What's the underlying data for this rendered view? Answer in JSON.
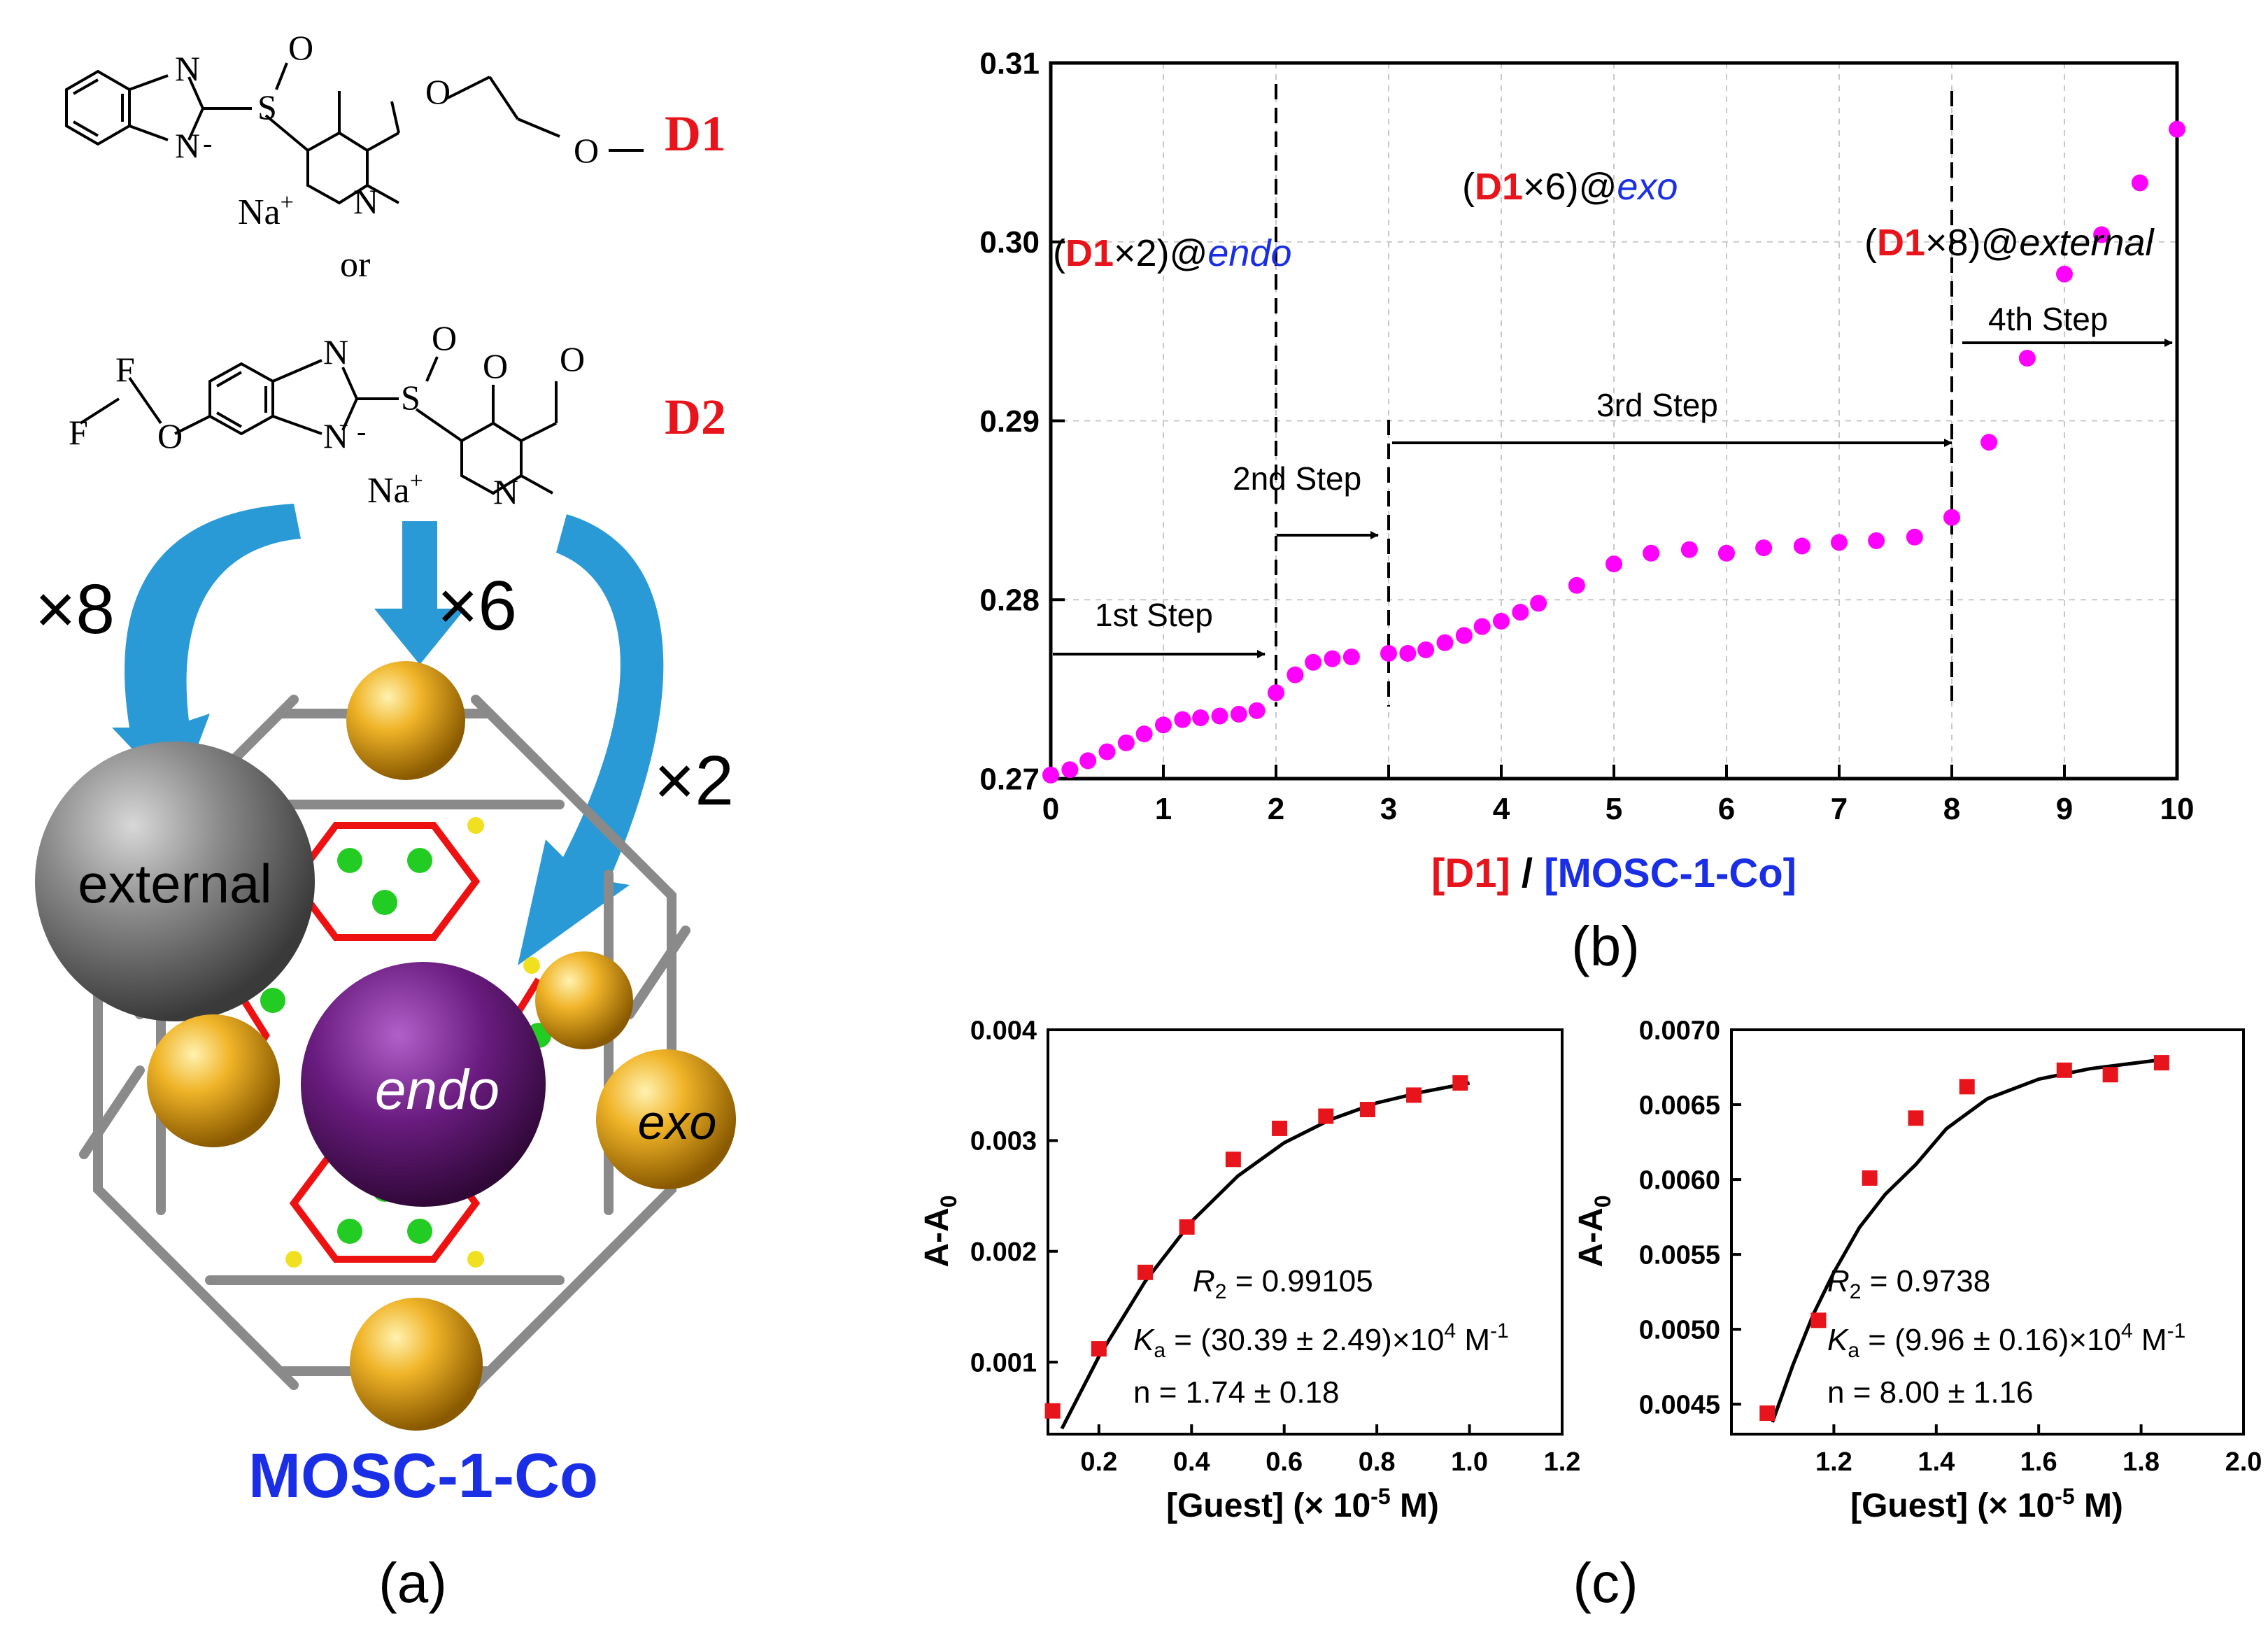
{
  "panel_a": {
    "drug1_label": "D1",
    "drug2_label": "D2",
    "or_text": "or",
    "counter_ion": "Na",
    "counter_ion_sup": "+",
    "count_external": "×8",
    "count_exo": "×6",
    "count_endo": "×2",
    "site_external": "external",
    "site_endo": "endo",
    "site_exo": "exo",
    "cage_name": "MOSC-1-Co",
    "panel_label": "(a)",
    "atoms_D1": [
      "N",
      "N",
      "S",
      "O",
      "O",
      "O",
      "N"
    ],
    "atoms_D2": [
      "F",
      "F",
      "O",
      "N",
      "N",
      "S",
      "O",
      "O",
      "O",
      "N"
    ],
    "minus": "-",
    "colors": {
      "drug_label": "#e8141c",
      "cage_name": "#1a2ee6",
      "arrow": "#2a9ad6",
      "external": "#7f7f7f",
      "endo": "#5b1670",
      "exo": "#e0a41a"
    }
  },
  "panel_b": {
    "panel_label": "(b)",
    "xlabel_parts": [
      "[",
      "D1",
      "] / [",
      "MOSC-1-Co",
      "]"
    ],
    "annotations": {
      "endo": [
        "(",
        "D1",
        "×2)@",
        "endo"
      ],
      "exo": [
        "(",
        "D1",
        "×6)@",
        "exo"
      ],
      "external": [
        "(",
        "D1",
        "×8)@",
        "external"
      ]
    },
    "steps": [
      "1st Step",
      "2nd Step",
      "3rd Step",
      "4th Step"
    ]
  },
  "panel_c": {
    "panel_label": "(c)"
  },
  "chart_data": [
    {
      "type": "scatter",
      "xlim": [
        0,
        10
      ],
      "ylim": [
        0.27,
        0.31
      ],
      "x_ticks": [
        0,
        1,
        2,
        3,
        4,
        5,
        6,
        7,
        8,
        9,
        10
      ],
      "x_tick_labels": [
        "0",
        "1",
        "2",
        "3",
        "4",
        "5",
        "6",
        "7",
        "8",
        "9",
        "10"
      ],
      "y_ticks": [
        0.27,
        0.28,
        0.29,
        0.3,
        0.31
      ],
      "y_tick_labels": [
        "0.27",
        "0.28",
        "0.29",
        "0.30",
        "0.31"
      ],
      "grid": true,
      "marker_color": "#ff00ff",
      "step_boundaries": [
        2,
        3,
        8
      ],
      "x": [
        0,
        0.17,
        0.33,
        0.5,
        0.67,
        0.83,
        1.0,
        1.17,
        1.33,
        1.5,
        1.67,
        1.83,
        2.0,
        2.17,
        2.33,
        2.5,
        2.67,
        3.0,
        3.17,
        3.33,
        3.5,
        3.67,
        3.83,
        4.0,
        4.17,
        4.33,
        4.67,
        5.0,
        5.33,
        5.67,
        6.0,
        6.33,
        6.67,
        7.0,
        7.33,
        7.67,
        8.0,
        8.33,
        8.67,
        9.0,
        9.33,
        9.67,
        10.0
      ],
      "y": [
        0.2702,
        0.2705,
        0.271,
        0.2715,
        0.272,
        0.2725,
        0.273,
        0.2733,
        0.2734,
        0.2735,
        0.2736,
        0.2738,
        0.2748,
        0.2758,
        0.2765,
        0.2767,
        0.2768,
        0.277,
        0.277,
        0.2772,
        0.2776,
        0.278,
        0.2785,
        0.2788,
        0.2793,
        0.2798,
        0.2808,
        0.282,
        0.2826,
        0.2828,
        0.2826,
        0.2829,
        0.283,
        0.2832,
        0.2833,
        0.2835,
        0.2846,
        0.2888,
        0.2935,
        0.2982,
        0.3004,
        0.3033,
        0.3063
      ]
    },
    {
      "type": "scatter",
      "xlim": [
        0.09,
        1.2
      ],
      "ylim": [
        0.00035,
        0.004
      ],
      "x_ticks": [
        0.2,
        0.4,
        0.6,
        0.8,
        1.0,
        1.2
      ],
      "x_tick_labels": [
        "0.2",
        "0.4",
        "0.6",
        "0.8",
        "1.0",
        "1.2"
      ],
      "y_ticks": [
        0.001,
        0.002,
        0.003,
        0.004
      ],
      "y_tick_labels": [
        "0.001",
        "0.002",
        "0.003",
        "0.004"
      ],
      "xlabel": "[Guest] (× 10",
      "xlabel_sup": "-5",
      "xlabel_end": " M)",
      "ylabel": "A-A",
      "ylabel_sub": "0",
      "marker_color": "#e8141c",
      "x": [
        0.1,
        0.2,
        0.3,
        0.39,
        0.49,
        0.59,
        0.69,
        0.78,
        0.88,
        0.98
      ],
      "y": [
        0.00056,
        0.00112,
        0.00181,
        0.00222,
        0.00283,
        0.00311,
        0.00322,
        0.00328,
        0.00341,
        0.00352
      ],
      "fit": {
        "x": [
          0.12,
          0.2,
          0.3,
          0.4,
          0.5,
          0.6,
          0.7,
          0.8,
          0.9,
          1.0
        ],
        "y": [
          0.0004,
          0.00105,
          0.00173,
          0.00227,
          0.00268,
          0.00298,
          0.00319,
          0.00334,
          0.00344,
          0.00352
        ]
      },
      "annotations": {
        "r2_label": "R",
        "r2_sub": "2",
        "r2_value": " = 0.99105",
        "ka_label": "K",
        "ka_sub": "a",
        "ka_value": " = (30.39 ± 2.49)×10",
        "ka_sup": "4",
        "ka_unit": " M",
        "ka_unit_sup": "-1",
        "n_text": "n = 1.74 ± 0.18"
      }
    },
    {
      "type": "scatter",
      "xlim": [
        1.0,
        2.0
      ],
      "ylim": [
        0.0043,
        0.007
      ],
      "x_ticks": [
        1.2,
        1.4,
        1.6,
        1.8,
        2.0
      ],
      "x_tick_labels": [
        "1.2",
        "1.4",
        "1.6",
        "1.8",
        "2.0"
      ],
      "y_ticks": [
        0.0045,
        0.005,
        0.0055,
        0.006,
        0.0065,
        0.007
      ],
      "y_tick_labels": [
        "0.0045",
        "0.0050",
        "0.0055",
        "0.0060",
        "0.0065",
        "0.0070"
      ],
      "xlabel": "[Guest] (× 10",
      "xlabel_sup": "-5",
      "xlabel_end": " M)",
      "ylabel": "A-A",
      "ylabel_sub": "0",
      "marker_color": "#e8141c",
      "x": [
        1.07,
        1.17,
        1.27,
        1.36,
        1.46,
        1.65,
        1.74,
        1.84
      ],
      "y": [
        0.00444,
        0.00506,
        0.00601,
        0.00641,
        0.00662,
        0.00673,
        0.0067,
        0.00678
      ],
      "fit": {
        "x": [
          1.08,
          1.12,
          1.16,
          1.2,
          1.25,
          1.3,
          1.36,
          1.42,
          1.5,
          1.6,
          1.7,
          1.84
        ],
        "y": [
          0.00438,
          0.00476,
          0.0051,
          0.00538,
          0.00568,
          0.0059,
          0.0061,
          0.00634,
          0.00654,
          0.00667,
          0.00674,
          0.0068
        ]
      },
      "annotations": {
        "r2_label": "R",
        "r2_sub": "2",
        "r2_value": " = 0.9738",
        "ka_label": "K",
        "ka_sub": "a",
        "ka_value": " = (9.96 ± 0.16)×10",
        "ka_sup": "4",
        "ka_unit": " M",
        "ka_unit_sup": "-1",
        "n_text": "n = 8.00 ± 1.16"
      }
    }
  ]
}
